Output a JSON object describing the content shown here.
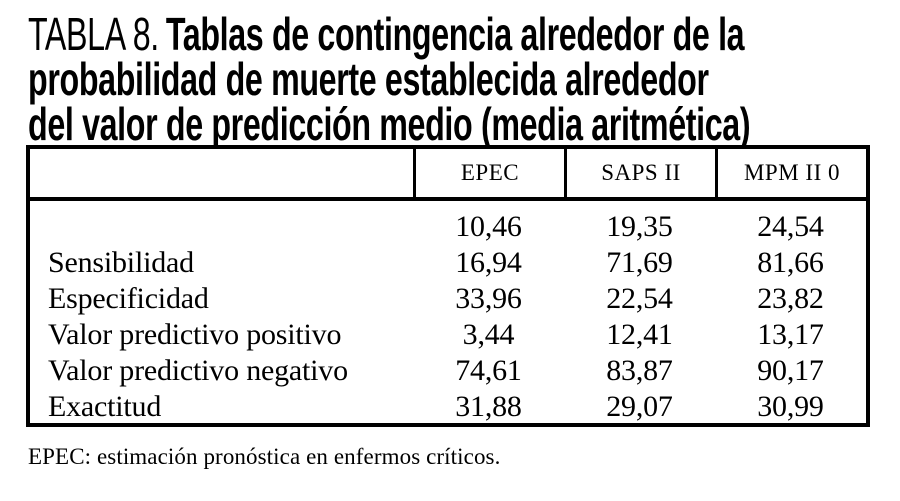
{
  "title": {
    "label": "TABLA 8.",
    "line1": "Tablas de contingencia alrededor de la",
    "line2": "probabilidad de muerte establecida alrededor",
    "line3": "del valor de predicción medio (media aritmética)"
  },
  "table": {
    "columns": [
      "EPEC",
      "SAPS II",
      "MPM II 0"
    ],
    "rows": [
      {
        "label": "",
        "values": [
          "10,46",
          "19,35",
          "24,54"
        ]
      },
      {
        "label": "Sensibilidad",
        "values": [
          "16,94",
          "71,69",
          "81,66"
        ]
      },
      {
        "label": "Especificidad",
        "values": [
          "33,96",
          "22,54",
          "23,82"
        ]
      },
      {
        "label": "Valor predictivo positivo",
        "values": [
          "3,44",
          "12,41",
          "13,17"
        ]
      },
      {
        "label": "Valor predictivo negativo",
        "values": [
          "74,61",
          "83,87",
          "90,17"
        ]
      },
      {
        "label": "Exactitud",
        "values": [
          "31,88",
          "29,07",
          "30,99"
        ]
      }
    ]
  },
  "footnote": "EPEC: estimación pronóstica en enfermos críticos.",
  "colors": {
    "text": "#000000",
    "background": "#ffffff",
    "border": "#000000"
  }
}
